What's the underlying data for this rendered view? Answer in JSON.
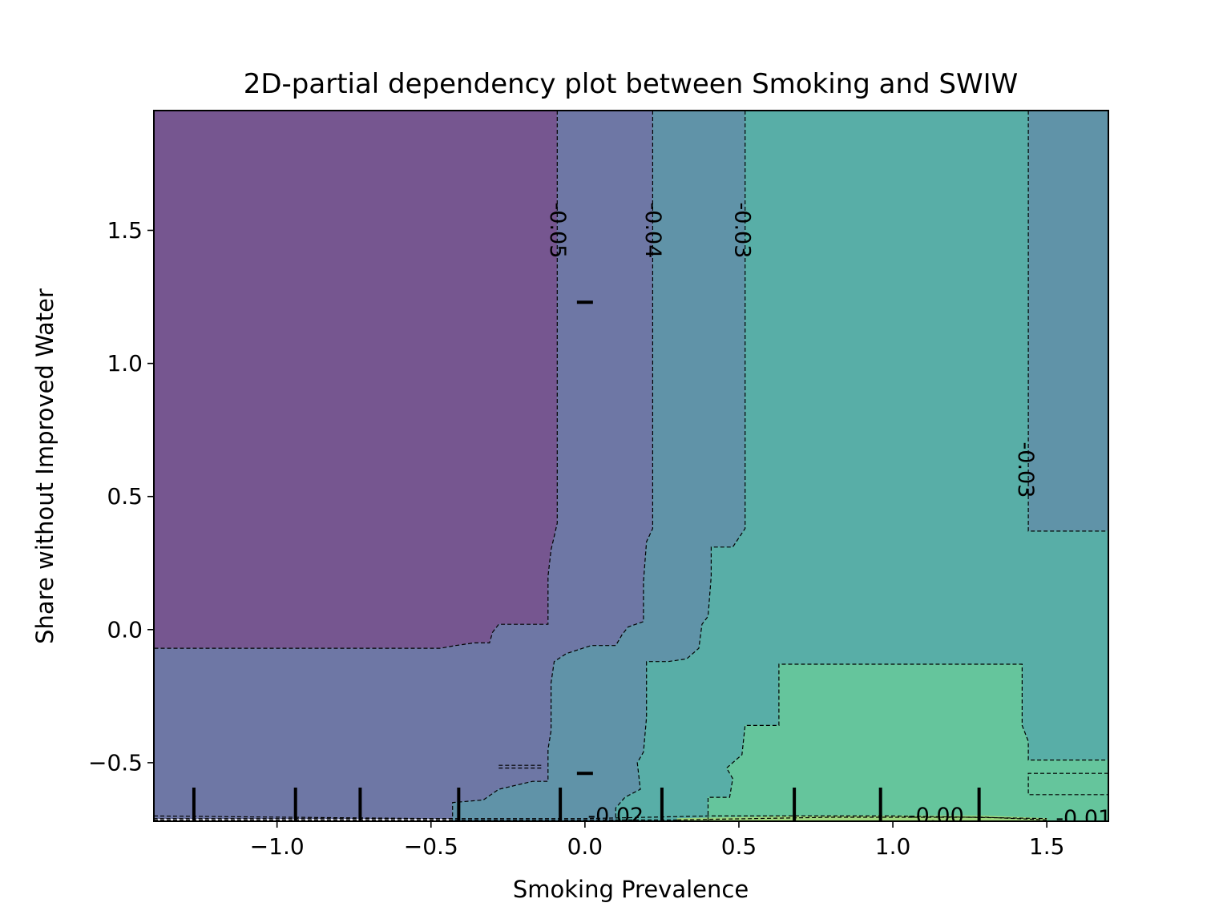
{
  "chart_data": {
    "type": "contour",
    "title": "2D-partial dependency plot between Smoking and SWIW",
    "xlabel": "Smoking Prevalence",
    "ylabel": "Share without Improved Water",
    "xlim": [
      -1.4,
      1.7
    ],
    "ylim": [
      -0.72,
      1.95
    ],
    "xticks": [
      -1.0,
      -0.5,
      0.0,
      0.5,
      1.0,
      1.5
    ],
    "xtick_labels": [
      "−1.0",
      "−0.5",
      "0.0",
      "0.5",
      "1.0",
      "1.5"
    ],
    "yticks": [
      -0.5,
      0.0,
      0.5,
      1.0,
      1.5
    ],
    "ytick_labels": [
      "−0.5",
      "0.0",
      "0.5",
      "1.0",
      "1.5"
    ],
    "grid": false,
    "colormap": "viridis",
    "region_colors": {
      "lt_-0.05": "#765690",
      "-0.05_to_-0.04": "#6e77a5",
      "-0.04_to_-0.03": "#6093a8",
      "-0.03_to_-0.02": "#58aea7",
      "-0.02_to_-0.01": "#65c59c",
      "gt_-0.01": "#9fd77e"
    },
    "regions": [
      {
        "level": "lt_-0.05",
        "polygon": [
          [
            -1.4,
            1.95
          ],
          [
            -0.09,
            1.95
          ],
          [
            -0.09,
            0.4
          ],
          [
            -0.1,
            0.35
          ],
          [
            -0.11,
            0.3
          ],
          [
            -0.12,
            0.2
          ],
          [
            -0.12,
            0.02
          ],
          [
            -0.28,
            0.02
          ],
          [
            -0.3,
            -0.01
          ],
          [
            -0.31,
            -0.05
          ],
          [
            -0.36,
            -0.05
          ],
          [
            -0.42,
            -0.06
          ],
          [
            -0.47,
            -0.07
          ],
          [
            -1.4,
            -0.07
          ]
        ]
      },
      {
        "level": "-0.05_to_-0.04",
        "polygon": [
          [
            -0.09,
            1.95
          ],
          [
            0.22,
            1.95
          ],
          [
            0.22,
            0.38
          ],
          [
            0.2,
            0.33
          ],
          [
            0.19,
            0.18
          ],
          [
            0.19,
            0.03
          ],
          [
            0.14,
            0.01
          ],
          [
            0.12,
            -0.02
          ],
          [
            0.1,
            -0.06
          ],
          [
            0.02,
            -0.06
          ],
          [
            -0.06,
            -0.09
          ],
          [
            -0.1,
            -0.12
          ],
          [
            -0.11,
            -0.2
          ],
          [
            -0.11,
            -0.38
          ],
          [
            -0.12,
            -0.45
          ],
          [
            -0.12,
            -0.57
          ],
          [
            -0.17,
            -0.57
          ],
          [
            -0.28,
            -0.6
          ],
          [
            -0.33,
            -0.64
          ],
          [
            -0.43,
            -0.65
          ],
          [
            -0.43,
            -0.71
          ],
          [
            -1.4,
            -0.71
          ],
          [
            -1.4,
            -0.07
          ],
          [
            -0.47,
            -0.07
          ],
          [
            -0.42,
            -0.06
          ],
          [
            -0.36,
            -0.05
          ],
          [
            -0.31,
            -0.05
          ],
          [
            -0.3,
            -0.01
          ],
          [
            -0.28,
            0.02
          ],
          [
            -0.12,
            0.02
          ],
          [
            -0.12,
            0.2
          ],
          [
            -0.11,
            0.3
          ],
          [
            -0.1,
            0.35
          ],
          [
            -0.09,
            0.4
          ]
        ]
      },
      {
        "level": "-0.04_to_-0.03",
        "polygon": [
          [
            0.22,
            1.95
          ],
          [
            0.52,
            1.95
          ],
          [
            0.52,
            0.38
          ],
          [
            0.48,
            0.31
          ],
          [
            0.41,
            0.31
          ],
          [
            0.41,
            0.2
          ],
          [
            0.4,
            0.05
          ],
          [
            0.38,
            0.02
          ],
          [
            0.37,
            -0.07
          ],
          [
            0.33,
            -0.11
          ],
          [
            0.27,
            -0.12
          ],
          [
            0.2,
            -0.12
          ],
          [
            0.2,
            -0.33
          ],
          [
            0.19,
            -0.46
          ],
          [
            0.17,
            -0.5
          ],
          [
            0.18,
            -0.6
          ],
          [
            0.13,
            -0.63
          ],
          [
            0.1,
            -0.67
          ],
          [
            0.1,
            -0.72
          ],
          [
            -0.43,
            -0.72
          ],
          [
            -0.43,
            -0.65
          ],
          [
            -0.33,
            -0.64
          ],
          [
            -0.28,
            -0.6
          ],
          [
            -0.17,
            -0.57
          ],
          [
            -0.12,
            -0.57
          ],
          [
            -0.12,
            -0.45
          ],
          [
            -0.11,
            -0.38
          ],
          [
            -0.11,
            -0.2
          ],
          [
            -0.1,
            -0.12
          ],
          [
            -0.06,
            -0.09
          ],
          [
            0.02,
            -0.06
          ],
          [
            0.1,
            -0.06
          ],
          [
            0.12,
            -0.02
          ],
          [
            0.14,
            0.01
          ],
          [
            0.19,
            0.03
          ],
          [
            0.19,
            0.18
          ],
          [
            0.2,
            0.33
          ],
          [
            0.22,
            0.38
          ]
        ]
      },
      {
        "level": "-0.04_to_-0.03",
        "polygon": [
          [
            1.44,
            1.95
          ],
          [
            1.7,
            1.95
          ],
          [
            1.7,
            0.37
          ],
          [
            1.44,
            0.37
          ]
        ]
      },
      {
        "level": "-0.03_to_-0.02",
        "polygon": [
          [
            0.52,
            1.95
          ],
          [
            1.44,
            1.95
          ],
          [
            1.44,
            0.37
          ],
          [
            1.7,
            0.37
          ],
          [
            1.7,
            -0.72
          ],
          [
            0.1,
            -0.72
          ],
          [
            0.1,
            -0.67
          ],
          [
            0.13,
            -0.63
          ],
          [
            0.18,
            -0.6
          ],
          [
            0.17,
            -0.5
          ],
          [
            0.19,
            -0.46
          ],
          [
            0.2,
            -0.33
          ],
          [
            0.2,
            -0.12
          ],
          [
            0.27,
            -0.12
          ],
          [
            0.33,
            -0.11
          ],
          [
            0.37,
            -0.07
          ],
          [
            0.38,
            0.02
          ],
          [
            0.4,
            0.05
          ],
          [
            0.41,
            0.2
          ],
          [
            0.41,
            0.31
          ],
          [
            0.48,
            0.31
          ],
          [
            0.52,
            0.38
          ]
        ]
      },
      {
        "level": "-0.02_to_-0.01",
        "polygon": [
          [
            0.63,
            -0.13
          ],
          [
            1.42,
            -0.13
          ],
          [
            1.42,
            -0.36
          ],
          [
            1.44,
            -0.42
          ],
          [
            1.44,
            -0.49
          ],
          [
            1.7,
            -0.49
          ],
          [
            1.7,
            -0.72
          ],
          [
            0.4,
            -0.72
          ],
          [
            0.4,
            -0.63
          ],
          [
            0.47,
            -0.63
          ],
          [
            0.48,
            -0.56
          ],
          [
            0.46,
            -0.52
          ],
          [
            0.51,
            -0.47
          ],
          [
            0.52,
            -0.36
          ],
          [
            0.55,
            -0.36
          ],
          [
            0.63,
            -0.36
          ]
        ]
      },
      {
        "level": "gt_-0.01",
        "polygon": [
          [
            0.3,
            -0.71
          ],
          [
            0.8,
            -0.7
          ],
          [
            1.3,
            -0.7
          ],
          [
            1.5,
            -0.71
          ],
          [
            1.5,
            -0.72
          ],
          [
            0.3,
            -0.72
          ]
        ]
      }
    ],
    "contours": [
      {
        "level": "-0.05",
        "points": [
          [
            -0.09,
            1.95
          ],
          [
            -0.09,
            0.4
          ],
          [
            -0.1,
            0.35
          ],
          [
            -0.11,
            0.3
          ],
          [
            -0.12,
            0.2
          ],
          [
            -0.12,
            0.02
          ],
          [
            -0.28,
            0.02
          ],
          [
            -0.3,
            -0.01
          ],
          [
            -0.31,
            -0.05
          ],
          [
            -0.36,
            -0.05
          ],
          [
            -0.42,
            -0.06
          ],
          [
            -0.47,
            -0.07
          ],
          [
            -1.4,
            -0.07
          ]
        ]
      },
      {
        "level": "-0.04",
        "points": [
          [
            0.22,
            1.95
          ],
          [
            0.22,
            0.38
          ],
          [
            0.2,
            0.33
          ],
          [
            0.19,
            0.18
          ],
          [
            0.19,
            0.03
          ],
          [
            0.14,
            0.01
          ],
          [
            0.12,
            -0.02
          ],
          [
            0.1,
            -0.06
          ],
          [
            0.02,
            -0.06
          ],
          [
            -0.06,
            -0.09
          ],
          [
            -0.1,
            -0.12
          ],
          [
            -0.11,
            -0.2
          ],
          [
            -0.11,
            -0.38
          ],
          [
            -0.12,
            -0.45
          ],
          [
            -0.12,
            -0.57
          ],
          [
            -0.17,
            -0.57
          ],
          [
            -0.28,
            -0.6
          ],
          [
            -0.33,
            -0.64
          ],
          [
            -0.43,
            -0.65
          ],
          [
            -0.43,
            -0.71
          ],
          [
            -1.4,
            -0.71
          ]
        ]
      },
      {
        "level": "-0.03",
        "points": [
          [
            0.52,
            1.95
          ],
          [
            0.52,
            0.38
          ],
          [
            0.48,
            0.31
          ],
          [
            0.41,
            0.31
          ],
          [
            0.41,
            0.2
          ],
          [
            0.4,
            0.05
          ],
          [
            0.38,
            0.02
          ],
          [
            0.37,
            -0.07
          ],
          [
            0.33,
            -0.11
          ],
          [
            0.27,
            -0.12
          ],
          [
            0.2,
            -0.12
          ],
          [
            0.2,
            -0.33
          ],
          [
            0.19,
            -0.46
          ],
          [
            0.17,
            -0.5
          ],
          [
            0.18,
            -0.6
          ],
          [
            0.13,
            -0.63
          ],
          [
            0.1,
            -0.67
          ],
          [
            0.1,
            -0.72
          ]
        ]
      },
      {
        "level": "-0.03",
        "points": [
          [
            1.44,
            1.95
          ],
          [
            1.44,
            0.37
          ],
          [
            1.7,
            0.37
          ]
        ]
      },
      {
        "level": "-0.02",
        "points": [
          [
            0.4,
            -0.72
          ],
          [
            0.4,
            -0.63
          ],
          [
            0.47,
            -0.63
          ],
          [
            0.48,
            -0.56
          ],
          [
            0.46,
            -0.52
          ],
          [
            0.51,
            -0.47
          ],
          [
            0.52,
            -0.36
          ],
          [
            0.55,
            -0.36
          ],
          [
            0.63,
            -0.36
          ],
          [
            0.63,
            -0.13
          ],
          [
            1.42,
            -0.13
          ],
          [
            1.42,
            -0.36
          ],
          [
            1.44,
            -0.42
          ],
          [
            1.44,
            -0.49
          ],
          [
            1.7,
            -0.49
          ]
        ]
      },
      {
        "level": "-0.03",
        "points": [
          [
            1.7,
            -0.54
          ],
          [
            1.44,
            -0.54
          ],
          [
            1.44,
            -0.62
          ],
          [
            1.7,
            -0.62
          ]
        ]
      },
      {
        "level": "-0.02",
        "points": [
          [
            -0.28,
            -0.51
          ],
          [
            -0.14,
            -0.51
          ]
        ]
      },
      {
        "level": "-0.02",
        "points": [
          [
            -0.28,
            -0.52
          ],
          [
            -0.14,
            -0.52
          ]
        ]
      },
      {
        "level": "-0.01",
        "points": [
          [
            -1.4,
            -0.7
          ],
          [
            -0.5,
            -0.71
          ],
          [
            0.0,
            -0.71
          ],
          [
            0.4,
            -0.7
          ],
          [
            1.0,
            -0.7
          ],
          [
            1.5,
            -0.71
          ]
        ]
      },
      {
        "level": "-0.00",
        "points": [
          [
            0.3,
            -0.715
          ],
          [
            0.8,
            -0.705
          ],
          [
            1.3,
            -0.705
          ],
          [
            1.5,
            -0.715
          ]
        ]
      },
      {
        "level": "-0.00",
        "points": [
          [
            -1.4,
            -0.715
          ],
          [
            0.3,
            -0.715
          ]
        ]
      }
    ],
    "contour_labels": [
      {
        "text": "-0.05",
        "x": -0.09,
        "y": 1.5,
        "rotation": 90
      },
      {
        "text": "-0.04",
        "x": 0.22,
        "y": 1.5,
        "rotation": 90
      },
      {
        "text": "-0.03",
        "x": 0.51,
        "y": 1.5,
        "rotation": 90
      },
      {
        "text": "-0.03",
        "x": 1.43,
        "y": 0.6,
        "rotation": 90
      },
      {
        "text": "-0.02",
        "x": 0.1,
        "y": -0.7,
        "rotation": 0
      },
      {
        "text": "-0.00",
        "x": 1.14,
        "y": -0.7,
        "rotation": 0
      },
      {
        "text": "-0.01",
        "x": 1.62,
        "y": -0.71,
        "rotation": 0
      }
    ],
    "x_deciles": [
      -1.27,
      -0.94,
      -0.73,
      -0.41,
      -0.08,
      0.25,
      0.68,
      0.96,
      1.28
    ],
    "y_deciles": [
      1.23,
      -0.54
    ]
  }
}
